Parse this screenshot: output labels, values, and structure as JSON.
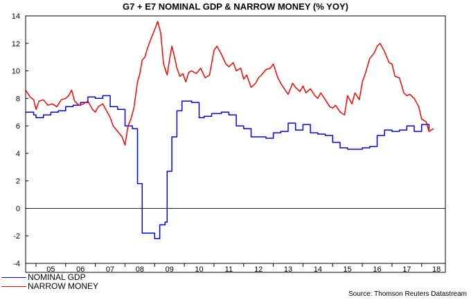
{
  "chart_data": {
    "type": "line",
    "title": "G7 + E7 NOMINAL GDP & NARROW MONEY (% YOY)",
    "source": "Source: Thomson Reuters Datastream",
    "x_tick_labels": [
      "05",
      "06",
      "07",
      "08",
      "09",
      "10",
      "11",
      "12",
      "13",
      "14",
      "15",
      "16",
      "17",
      "18"
    ],
    "x_tick_years": [
      2005,
      2006,
      2007,
      2008,
      2009,
      2010,
      2011,
      2012,
      2013,
      2014,
      2015,
      2016,
      2017,
      2018
    ],
    "xlim": [
      2004.65,
      2018.8
    ],
    "ylim": [
      -4,
      14
    ],
    "y_ticks": [
      -4,
      -2,
      0,
      2,
      4,
      6,
      8,
      10,
      12,
      14
    ],
    "zero_line": true,
    "legend_placement": "bottom-left",
    "series": [
      {
        "name": "NOMINAL GDP",
        "color": "#0000ff",
        "step": true,
        "x": [
          2004.65,
          2004.92,
          2005.0,
          2005.25,
          2005.5,
          2005.75,
          2006.0,
          2006.25,
          2006.5,
          2006.75,
          2007.0,
          2007.25,
          2007.5,
          2007.75,
          2008.0,
          2008.25,
          2008.42,
          2008.58,
          2008.75,
          2009.0,
          2009.17,
          2009.35,
          2009.42,
          2009.58,
          2009.75,
          2009.92,
          2010.25,
          2010.5,
          2010.67,
          2010.92,
          2011.25,
          2011.5,
          2011.75,
          2012.0,
          2012.25,
          2012.5,
          2012.75,
          2013.0,
          2013.25,
          2013.5,
          2013.75,
          2014.0,
          2014.25,
          2014.5,
          2014.75,
          2015.0,
          2015.25,
          2015.5,
          2015.75,
          2016.0,
          2016.25,
          2016.5,
          2016.75,
          2017.0,
          2017.25,
          2017.5,
          2017.75,
          2018.0,
          2018.25
        ],
        "y": [
          7.0,
          6.8,
          6.6,
          6.8,
          7.0,
          7.1,
          7.4,
          7.5,
          7.7,
          8.1,
          8.0,
          8.2,
          7.4,
          7.2,
          6.0,
          5.8,
          1.8,
          -1.8,
          -1.8,
          -2.2,
          -1.2,
          -1.0,
          2.7,
          5.2,
          7.1,
          7.8,
          7.7,
          6.6,
          6.7,
          6.9,
          7.0,
          6.8,
          6.0,
          5.8,
          5.2,
          5.2,
          5.1,
          5.5,
          5.6,
          6.2,
          5.7,
          6.1,
          5.5,
          5.4,
          5.3,
          4.8,
          4.4,
          4.3,
          4.3,
          4.4,
          4.5,
          5.3,
          5.7,
          5.6,
          5.7,
          6.0,
          5.6,
          6.1,
          5.7
        ]
      },
      {
        "name": "NARROW MONEY",
        "color": "#ff0000",
        "step": false,
        "x": [
          2004.65,
          2004.8,
          2004.92,
          2005.0,
          2005.1,
          2005.25,
          2005.4,
          2005.55,
          2005.7,
          2005.85,
          2006.0,
          2006.1,
          2006.2,
          2006.3,
          2006.45,
          2006.6,
          2006.75,
          2006.9,
          2007.0,
          2007.1,
          2007.25,
          2007.4,
          2007.5,
          2007.6,
          2007.75,
          2007.9,
          2008.0,
          2008.1,
          2008.2,
          2008.3,
          2008.42,
          2008.5,
          2008.58,
          2008.67,
          2008.75,
          2008.85,
          2009.0,
          2009.1,
          2009.2,
          2009.3,
          2009.42,
          2009.5,
          2009.58,
          2009.67,
          2009.75,
          2009.85,
          2009.95,
          2010.05,
          2010.15,
          2010.25,
          2010.4,
          2010.55,
          2010.7,
          2010.85,
          2011.0,
          2011.1,
          2011.25,
          2011.4,
          2011.5,
          2011.65,
          2011.75,
          2011.9,
          2012.0,
          2012.1,
          2012.25,
          2012.4,
          2012.5,
          2012.6,
          2012.75,
          2012.9,
          2013.0,
          2013.15,
          2013.25,
          2013.4,
          2013.5,
          2013.65,
          2013.75,
          2013.9,
          2014.0,
          2014.1,
          2014.25,
          2014.4,
          2014.5,
          2014.6,
          2014.75,
          2014.9,
          2015.0,
          2015.1,
          2015.25,
          2015.4,
          2015.5,
          2015.65,
          2015.75,
          2015.9,
          2016.0,
          2016.1,
          2016.25,
          2016.4,
          2016.5,
          2016.6,
          2016.75,
          2016.9,
          2017.0,
          2017.1,
          2017.25,
          2017.4,
          2017.5,
          2017.6,
          2017.75,
          2017.9,
          2018.0,
          2018.15,
          2018.25,
          2018.4
        ],
        "y": [
          8.6,
          8.1,
          7.9,
          7.2,
          7.8,
          7.9,
          7.5,
          7.6,
          7.4,
          7.9,
          8.0,
          8.2,
          8.6,
          7.8,
          7.5,
          7.6,
          7.8,
          7.2,
          7.0,
          7.4,
          7.6,
          7.0,
          6.6,
          6.0,
          5.6,
          5.2,
          4.6,
          6.0,
          6.5,
          7.3,
          9.2,
          9.8,
          10.8,
          11.0,
          11.6,
          12.2,
          13.0,
          13.6,
          12.8,
          10.5,
          9.7,
          10.8,
          11.8,
          11.0,
          10.2,
          9.6,
          9.8,
          9.2,
          9.9,
          10.0,
          9.8,
          10.2,
          9.5,
          9.7,
          11.5,
          11.8,
          11.2,
          10.5,
          10.3,
          10.6,
          10.0,
          10.2,
          9.4,
          9.7,
          8.8,
          9.1,
          9.5,
          9.7,
          10.1,
          10.2,
          10.5,
          9.5,
          9.1,
          8.6,
          8.3,
          9.1,
          8.8,
          8.5,
          8.9,
          8.4,
          8.7,
          8.2,
          8.0,
          8.4,
          7.9,
          7.4,
          7.3,
          7.5,
          7.0,
          6.8,
          8.2,
          7.6,
          8.4,
          7.9,
          9.2,
          9.8,
          10.9,
          11.3,
          11.8,
          12.0,
          11.4,
          10.6,
          10.5,
          9.6,
          9.5,
          8.4,
          8.2,
          8.3,
          8.0,
          7.4,
          6.5,
          6.3,
          5.6,
          5.8
        ]
      }
    ]
  }
}
